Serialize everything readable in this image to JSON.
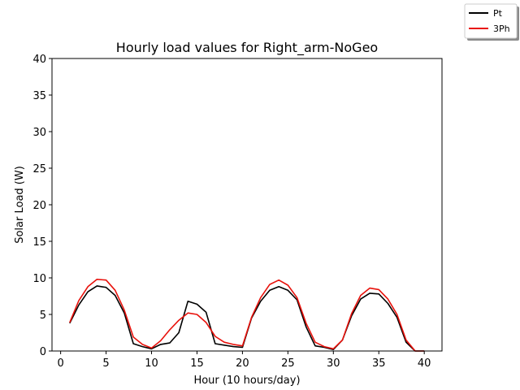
{
  "chart_data": {
    "type": "line",
    "title": "Hourly load values for Right_arm-NoGeo",
    "xlabel": "Hour (10 hours/day)",
    "ylabel": "Solar Load (W)",
    "xlim": [
      -0.95,
      41.95
    ],
    "ylim": [
      0,
      40
    ],
    "xticks": [
      0,
      5,
      10,
      15,
      20,
      25,
      30,
      35,
      40
    ],
    "yticks": [
      0,
      5,
      10,
      15,
      20,
      25,
      30,
      35,
      40
    ],
    "grid": false,
    "legend_position": "top-right",
    "x": [
      1,
      2,
      3,
      4,
      5,
      6,
      7,
      8,
      9,
      10,
      11,
      12,
      13,
      14,
      15,
      16,
      17,
      18,
      19,
      20,
      21,
      22,
      23,
      24,
      25,
      26,
      27,
      28,
      29,
      30,
      31,
      32,
      33,
      34,
      35,
      36,
      37,
      38,
      39,
      40
    ],
    "series": [
      {
        "name": "Pt",
        "color": "#000000",
        "values": [
          3.8,
          6.3,
          8.1,
          8.9,
          8.7,
          7.6,
          5.2,
          1.0,
          0.6,
          0.3,
          0.9,
          1.1,
          2.5,
          6.8,
          6.4,
          5.3,
          1.0,
          0.8,
          0.6,
          0.5,
          4.5,
          6.8,
          8.3,
          8.8,
          8.3,
          7.0,
          3.3,
          0.7,
          0.5,
          0.2,
          1.5,
          4.8,
          7.1,
          7.9,
          7.8,
          6.5,
          4.6,
          1.2,
          0.0,
          0.0
        ]
      },
      {
        "name": "3Ph",
        "color": "#e8120c",
        "values": [
          3.9,
          6.9,
          8.8,
          9.8,
          9.7,
          8.3,
          5.6,
          1.9,
          0.9,
          0.4,
          1.4,
          2.9,
          4.2,
          5.2,
          5.0,
          3.9,
          2.0,
          1.2,
          0.9,
          0.7,
          4.6,
          7.3,
          9.1,
          9.7,
          9.0,
          7.3,
          3.8,
          1.2,
          0.6,
          0.3,
          1.5,
          5.1,
          7.6,
          8.6,
          8.4,
          7.1,
          5.0,
          1.5,
          0.0,
          0.0
        ]
      }
    ]
  }
}
